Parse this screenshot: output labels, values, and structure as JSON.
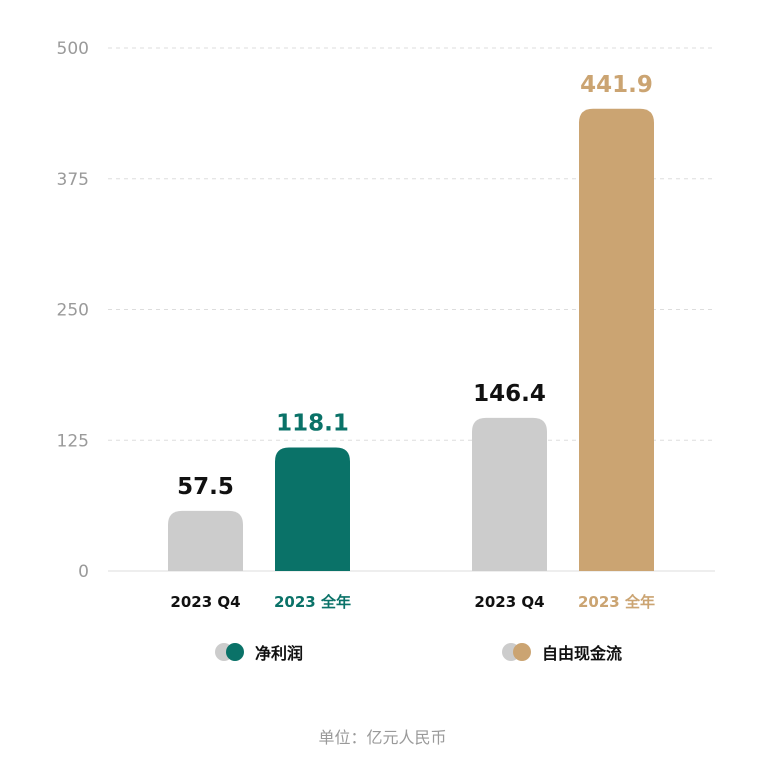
{
  "chart_data": {
    "type": "bar",
    "ylim": [
      0,
      500
    ],
    "yticks": [
      0,
      125,
      250,
      375,
      500
    ],
    "grid": true,
    "groups": [
      {
        "name": "净利润",
        "bars": [
          {
            "label": "2023 Q4",
            "value": 57.5,
            "value_text": "57.5",
            "color": "#cccccc",
            "label_color": "#111111",
            "value_color": "#111111"
          },
          {
            "label": "2023 全年",
            "value": 118.1,
            "value_text": "118.1",
            "color": "#0a7268",
            "label_color": "#0a7268",
            "value_color": "#0a7268"
          }
        ]
      },
      {
        "name": "自由现金流",
        "bars": [
          {
            "label": "2023 Q4",
            "value": 146.4,
            "value_text": "146.4",
            "color": "#cccccc",
            "label_color": "#111111",
            "value_color": "#111111"
          },
          {
            "label": "2023 全年",
            "value": 441.9,
            "value_text": "441.9",
            "color": "#cba472",
            "label_color": "#cba472",
            "value_color": "#cba472"
          }
        ]
      }
    ],
    "legend_position": "bottom"
  },
  "legend": [
    {
      "name": "净利润",
      "color_q4": "#cccccc",
      "color_year": "#0a7268"
    },
    {
      "name": "自由现金流",
      "color_q4": "#cccccc",
      "color_year": "#cba472"
    }
  ],
  "unit_note": "单位：亿元人民币"
}
